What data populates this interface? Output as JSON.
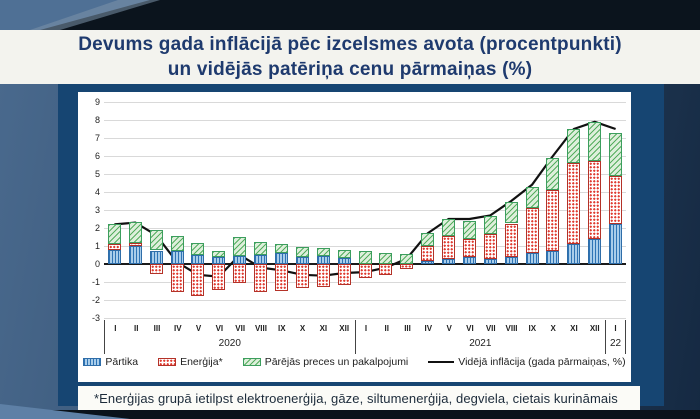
{
  "title": {
    "line1": "Devums gada inflācijā pēc izcelsmes avota (procentpunkti)",
    "line2": "un vidējās patēriņa cenu pārmaiņas (%)"
  },
  "footnote": "*Enerģijas grupā ietilpst elektroenerģija, gāze, siltumenerģija, degviela, cietais kurināmais",
  "legend": {
    "food": "Pārtika",
    "energy": "Enerģija*",
    "other": "Pārējās preces un pakalpojumi",
    "line": "Vidējā inflācija (gada pārmaiņas, %)"
  },
  "colors": {
    "title_text": "#1e3a6e",
    "food_bar": "#2e74b5",
    "energy_bar": "#e03a2f",
    "other_bar": "#3c9e5e",
    "inflation_line": "#1b1b1b",
    "grid": "#d9d9d9"
  },
  "chart_data": {
    "type": "bar",
    "subtype": "stacked-bars-with-line",
    "categories": [
      "I",
      "II",
      "III",
      "IV",
      "V",
      "VI",
      "VII",
      "VIII",
      "IX",
      "X",
      "XI",
      "XII",
      "I",
      "II",
      "III",
      "IV",
      "V",
      "VI",
      "VII",
      "VIII",
      "IX",
      "X",
      "XI",
      "XII",
      "I"
    ],
    "year_groups": [
      {
        "label": "2020",
        "span": 12
      },
      {
        "label": "2021",
        "span": 12
      },
      {
        "label": "22",
        "span": 1
      }
    ],
    "series": [
      {
        "name": "Pārtika",
        "type": "bar",
        "color_key": "food",
        "values": [
          0.8,
          1.0,
          0.75,
          0.7,
          0.5,
          0.4,
          0.45,
          0.5,
          0.6,
          0.4,
          0.45,
          0.35,
          0,
          0,
          0,
          0.15,
          0.3,
          0.4,
          0.3,
          0.4,
          0.6,
          0.7,
          1.1,
          1.4,
          2.2
        ]
      },
      {
        "name": "Enerģija*",
        "type": "bar",
        "color_key": "energy",
        "values": [
          0.3,
          0.15,
          -0.55,
          -1.55,
          -1.75,
          -1.45,
          -1.05,
          -1.55,
          -1.5,
          -1.35,
          -1.25,
          -1.15,
          -0.8,
          -0.6,
          -0.25,
          0.85,
          1.25,
          1.0,
          1.35,
          1.85,
          2.5,
          3.4,
          4.5,
          4.3,
          2.7
        ]
      },
      {
        "name": "Pārējās preces un pakalpojumi",
        "type": "bar",
        "color_key": "other",
        "values": [
          1.1,
          1.2,
          1.15,
          0.85,
          0.65,
          0.35,
          1.05,
          0.7,
          0.5,
          0.55,
          0.45,
          0.45,
          0.75,
          0.6,
          0.55,
          0.7,
          0.95,
          1.0,
          1.0,
          1.2,
          1.2,
          1.8,
          1.9,
          2.2,
          2.4
        ]
      },
      {
        "name": "Vidējā inflācija (gada pārmaiņas, %)",
        "type": "line",
        "color_key": "line",
        "values": [
          2.2,
          2.3,
          1.6,
          0.1,
          -0.6,
          -0.7,
          0.5,
          -0.2,
          -0.35,
          -0.6,
          -0.65,
          -0.5,
          -0.45,
          -0.2,
          0.3,
          1.7,
          2.5,
          2.5,
          2.7,
          3.5,
          4.4,
          6.0,
          7.5,
          7.9,
          7.5
        ]
      }
    ],
    "ylim": [
      -3,
      9
    ],
    "y_ticks": [
      9,
      8,
      7,
      6,
      5,
      4,
      3,
      2,
      1,
      0,
      -1,
      -2,
      -3
    ],
    "grid": true,
    "legend_position": "bottom"
  }
}
